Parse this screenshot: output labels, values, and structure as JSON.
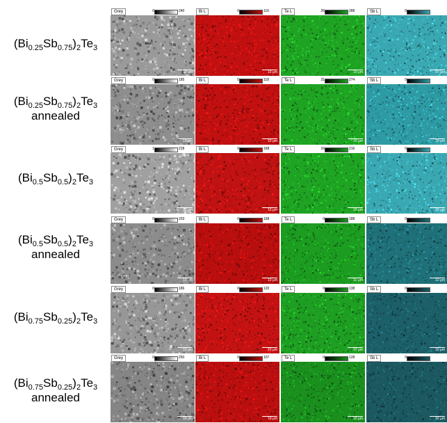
{
  "rows": [
    {
      "label": {
        "main": "(Bi",
        "s1": "0.25",
        "mid": "Sb",
        "s2": "0.75",
        "close": ")",
        "s3": "2",
        "end": "Te",
        "s4": "3",
        "line2": ""
      },
      "panels": [
        {
          "tag": "Grey",
          "cmin": "0",
          "cmax": "240",
          "scale": "10 μm",
          "color": "#9a9a9a"
        },
        {
          "tag": "Bi L",
          "cmin": "0",
          "cmax": "116",
          "scale": "10 μm",
          "color": "#c21010"
        },
        {
          "tag": "Te L",
          "cmin": "26",
          "cmax": "288",
          "scale": "10 μm",
          "color": "#1fa323"
        },
        {
          "tag": "Sb L",
          "cmin": "0",
          "cmax": "",
          "scale": "10 μm",
          "color": "#3aa8b2"
        }
      ]
    },
    {
      "label": {
        "main": "(Bi",
        "s1": "0.25",
        "mid": "Sb",
        "s2": "0.75",
        "close": ")",
        "s3": "2",
        "end": "Te",
        "s4": "3",
        "line2": "annealed"
      },
      "panels": [
        {
          "tag": "Grey",
          "cmin": "0",
          "cmax": "185",
          "scale": "10 μm",
          "color": "#8e8e8e"
        },
        {
          "tag": "Bi L",
          "cmin": "0",
          "cmax": "118",
          "scale": "10 μm",
          "color": "#c01010"
        },
        {
          "tag": "Te L",
          "cmin": "31",
          "cmax": "274",
          "scale": "10 μm",
          "color": "#1fa323"
        },
        {
          "tag": "Sb L",
          "cmin": "0",
          "cmax": "",
          "scale": "10 μm",
          "color": "#2e9aa4"
        }
      ]
    },
    {
      "label": {
        "main": "(Bi",
        "s1": "0.5",
        "mid": "Sb",
        "s2": "0.5",
        "close": ")",
        "s3": "2",
        "end": "Te",
        "s4": "3",
        "line2": ""
      },
      "panels": [
        {
          "tag": "Grey",
          "cmin": "1",
          "cmax": "228",
          "scale": "10 μm",
          "color": "#a0a0a0"
        },
        {
          "tag": "Bi L",
          "cmin": "0",
          "cmax": "168",
          "scale": "10 μm",
          "color": "#c01212"
        },
        {
          "tag": "Te L",
          "cmin": "16",
          "cmax": "216",
          "scale": "10 μm",
          "color": "#1fa323"
        },
        {
          "tag": "Sb L",
          "cmin": "0",
          "cmax": "",
          "scale": "10 μm",
          "color": "#3aa8b2"
        }
      ]
    },
    {
      "label": {
        "main": "(Bi",
        "s1": "0.5",
        "mid": "Sb",
        "s2": "0.5",
        "close": ")",
        "s3": "2",
        "end": "Te",
        "s4": "3",
        "line2": "annealed"
      },
      "panels": [
        {
          "tag": "Grey",
          "cmin": "0",
          "cmax": "203",
          "scale": "10 μm",
          "color": "#8c8c8c"
        },
        {
          "tag": "Bi L",
          "cmin": "0",
          "cmax": "168",
          "scale": "10 μm",
          "color": "#b80e0e"
        },
        {
          "tag": "Te L",
          "cmin": "0",
          "cmax": "188",
          "scale": "10 μm",
          "color": "#1c9c20"
        },
        {
          "tag": "Sb L",
          "cmin": "0",
          "cmax": "",
          "scale": "10 μm",
          "color": "#1f7078"
        }
      ]
    },
    {
      "label": {
        "main": "(Bi",
        "s1": "0.75",
        "mid": "Sb",
        "s2": "0.25",
        "close": ")",
        "s3": "2",
        "end": "Te",
        "s4": "3",
        "line2": ""
      },
      "panels": [
        {
          "tag": "Grey",
          "cmin": "0",
          "cmax": "186",
          "scale": "10 μm",
          "color": "#979797"
        },
        {
          "tag": "Bi L",
          "cmin": "0",
          "cmax": "120",
          "scale": "10 μm",
          "color": "#c41212"
        },
        {
          "tag": "Te L",
          "cmin": "0",
          "cmax": "138",
          "scale": "10 μm",
          "color": "#1e9e22"
        },
        {
          "tag": "Sb L",
          "cmin": "0",
          "cmax": "",
          "scale": "10 μm",
          "color": "#1c5f68"
        }
      ]
    },
    {
      "label": {
        "main": "(Bi",
        "s1": "0.75",
        "mid": "Sb",
        "s2": "0.25",
        "close": ")",
        "s3": "2",
        "end": "Te",
        "s4": "3",
        "line2": "annealed"
      },
      "panels": [
        {
          "tag": "Grey",
          "cmin": "0",
          "cmax": "250",
          "scale": "10 μm",
          "color": "#858585"
        },
        {
          "tag": "Bi L",
          "cmin": "0",
          "cmax": "107",
          "scale": "10 μm",
          "color": "#bb0f0f"
        },
        {
          "tag": "Te L",
          "cmin": "0",
          "cmax": "128",
          "scale": "10 μm",
          "color": "#1a8f1e"
        },
        {
          "tag": "Sb L",
          "cmin": "0",
          "cmax": "",
          "scale": "10 μm",
          "color": "#1b5860"
        }
      ]
    }
  ]
}
